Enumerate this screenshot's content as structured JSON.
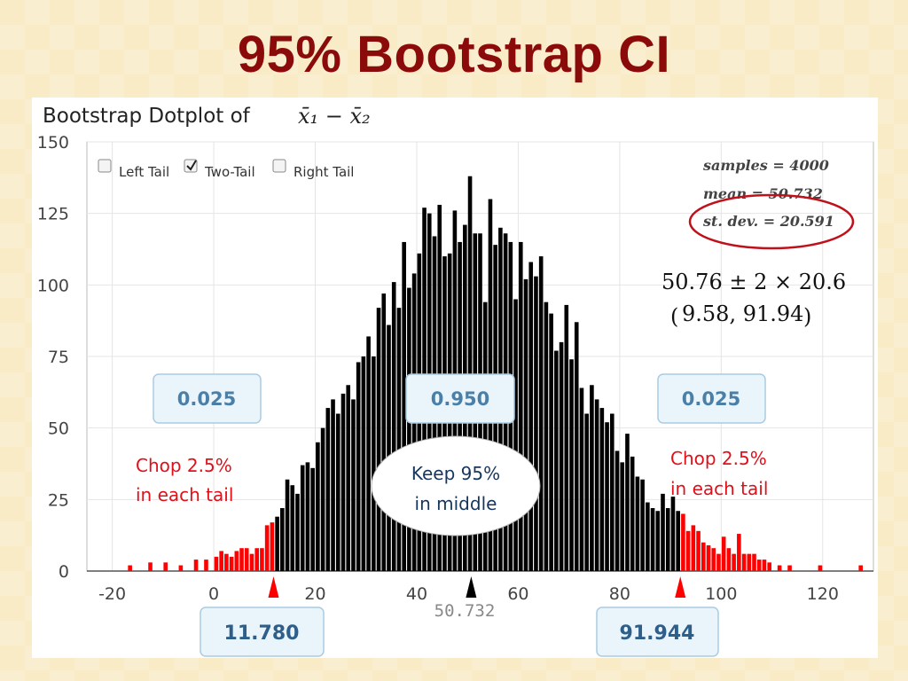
{
  "slide": {
    "title": "95% Bootstrap CI"
  },
  "controls": {
    "left_tail": {
      "label": "Left Tail",
      "checked": false
    },
    "two_tail": {
      "label": "Two-Tail",
      "checked": true
    },
    "right_tail": {
      "label": "Right Tail",
      "checked": false
    }
  },
  "stats": {
    "samples": "samples = 4000",
    "mean": "mean = 50.732",
    "stdev": "st. dev. = 20.591"
  },
  "formula": {
    "line1": "50.76 ± 2 × 20.6",
    "line2_open": "(",
    "line2_inner": "9.58, 91.94",
    "line2_close": ")"
  },
  "proportions": {
    "left": "0.025",
    "middle": "0.950",
    "right": "0.025"
  },
  "bounds": {
    "lower": "11.780",
    "upper": "91.944",
    "mean_marker": "50.732"
  },
  "notes": {
    "left": [
      "Chop 2.5%",
      "in each tail"
    ],
    "middle": [
      "Keep 95%",
      "in middle"
    ],
    "right": [
      "Chop 2.5%",
      "in each tail"
    ]
  },
  "colors": {
    "title": "#8b0a0a",
    "tail_bar": "#ff0000",
    "body_bar": "#000000",
    "stdev_circle": "#c0101a",
    "note_red": "#e0101a",
    "note_blue": "#17365d"
  },
  "chart_data": {
    "type": "bar",
    "title_text": "Bootstrap Dotplot of",
    "title_math": "x̄₁ − x̄₂",
    "xlim": [
      -25,
      130
    ],
    "ylim": [
      0,
      150
    ],
    "x_ticks": [
      -20,
      0,
      20,
      40,
      60,
      80,
      100,
      120
    ],
    "y_ticks": [
      0,
      25,
      50,
      75,
      100,
      125,
      150
    ],
    "grid": true,
    "ci_lower": 11.78,
    "ci_upper": 91.944,
    "mean": 50.732,
    "bars": [
      {
        "x": -16.5,
        "y": 2
      },
      {
        "x": -12.5,
        "y": 3
      },
      {
        "x": -9.5,
        "y": 3
      },
      {
        "x": -6.5,
        "y": 2
      },
      {
        "x": -3.5,
        "y": 4
      },
      {
        "x": -1.5,
        "y": 4
      },
      {
        "x": 0.5,
        "y": 5
      },
      {
        "x": 1.5,
        "y": 7
      },
      {
        "x": 2.5,
        "y": 6
      },
      {
        "x": 3.5,
        "y": 5
      },
      {
        "x": 4.5,
        "y": 7
      },
      {
        "x": 5.5,
        "y": 8
      },
      {
        "x": 6.5,
        "y": 8
      },
      {
        "x": 7.5,
        "y": 6
      },
      {
        "x": 8.5,
        "y": 8
      },
      {
        "x": 9.5,
        "y": 8
      },
      {
        "x": 10.5,
        "y": 16
      },
      {
        "x": 11.5,
        "y": 17
      },
      {
        "x": 12.5,
        "y": 19
      },
      {
        "x": 13.5,
        "y": 22
      },
      {
        "x": 14.5,
        "y": 32
      },
      {
        "x": 15.5,
        "y": 30
      },
      {
        "x": 16.5,
        "y": 27
      },
      {
        "x": 17.5,
        "y": 37
      },
      {
        "x": 18.5,
        "y": 38
      },
      {
        "x": 19.5,
        "y": 36
      },
      {
        "x": 20.5,
        "y": 45
      },
      {
        "x": 21.5,
        "y": 50
      },
      {
        "x": 22.5,
        "y": 57
      },
      {
        "x": 23.5,
        "y": 60
      },
      {
        "x": 24.5,
        "y": 55
      },
      {
        "x": 25.5,
        "y": 62
      },
      {
        "x": 26.5,
        "y": 65
      },
      {
        "x": 27.5,
        "y": 60
      },
      {
        "x": 28.5,
        "y": 73
      },
      {
        "x": 29.5,
        "y": 75
      },
      {
        "x": 30.5,
        "y": 82
      },
      {
        "x": 31.5,
        "y": 75
      },
      {
        "x": 32.5,
        "y": 92
      },
      {
        "x": 33.5,
        "y": 97
      },
      {
        "x": 34.5,
        "y": 86
      },
      {
        "x": 35.5,
        "y": 101
      },
      {
        "x": 36.5,
        "y": 92
      },
      {
        "x": 37.5,
        "y": 115
      },
      {
        "x": 38.5,
        "y": 99
      },
      {
        "x": 39.5,
        "y": 104
      },
      {
        "x": 40.5,
        "y": 111
      },
      {
        "x": 41.5,
        "y": 127
      },
      {
        "x": 42.5,
        "y": 125
      },
      {
        "x": 43.5,
        "y": 117
      },
      {
        "x": 44.5,
        "y": 128
      },
      {
        "x": 45.5,
        "y": 110
      },
      {
        "x": 46.5,
        "y": 111
      },
      {
        "x": 47.5,
        "y": 126
      },
      {
        "x": 48.5,
        "y": 115
      },
      {
        "x": 49.5,
        "y": 121
      },
      {
        "x": 50.5,
        "y": 138
      },
      {
        "x": 51.5,
        "y": 118
      },
      {
        "x": 52.5,
        "y": 118
      },
      {
        "x": 53.5,
        "y": 94
      },
      {
        "x": 54.5,
        "y": 130
      },
      {
        "x": 55.5,
        "y": 114
      },
      {
        "x": 56.5,
        "y": 120
      },
      {
        "x": 57.5,
        "y": 118
      },
      {
        "x": 58.5,
        "y": 115
      },
      {
        "x": 59.5,
        "y": 95
      },
      {
        "x": 60.5,
        "y": 115
      },
      {
        "x": 61.5,
        "y": 102
      },
      {
        "x": 62.5,
        "y": 108
      },
      {
        "x": 63.5,
        "y": 103
      },
      {
        "x": 64.5,
        "y": 110
      },
      {
        "x": 65.5,
        "y": 94
      },
      {
        "x": 66.5,
        "y": 90
      },
      {
        "x": 67.5,
        "y": 77
      },
      {
        "x": 68.5,
        "y": 80
      },
      {
        "x": 69.5,
        "y": 93
      },
      {
        "x": 70.5,
        "y": 74
      },
      {
        "x": 71.5,
        "y": 87
      },
      {
        "x": 72.5,
        "y": 64
      },
      {
        "x": 73.5,
        "y": 55
      },
      {
        "x": 74.5,
        "y": 65
      },
      {
        "x": 75.5,
        "y": 60
      },
      {
        "x": 76.5,
        "y": 57
      },
      {
        "x": 77.5,
        "y": 52
      },
      {
        "x": 78.5,
        "y": 55
      },
      {
        "x": 79.5,
        "y": 42
      },
      {
        "x": 80.5,
        "y": 38
      },
      {
        "x": 81.5,
        "y": 48
      },
      {
        "x": 82.5,
        "y": 40
      },
      {
        "x": 83.5,
        "y": 33
      },
      {
        "x": 84.5,
        "y": 32
      },
      {
        "x": 85.5,
        "y": 24
      },
      {
        "x": 86.5,
        "y": 22
      },
      {
        "x": 87.5,
        "y": 21
      },
      {
        "x": 88.5,
        "y": 27
      },
      {
        "x": 89.5,
        "y": 22
      },
      {
        "x": 90.5,
        "y": 26
      },
      {
        "x": 91.5,
        "y": 21
      },
      {
        "x": 92.5,
        "y": 20
      },
      {
        "x": 93.5,
        "y": 14
      },
      {
        "x": 94.5,
        "y": 16
      },
      {
        "x": 95.5,
        "y": 14
      },
      {
        "x": 96.5,
        "y": 10
      },
      {
        "x": 97.5,
        "y": 9
      },
      {
        "x": 98.5,
        "y": 8
      },
      {
        "x": 99.5,
        "y": 6
      },
      {
        "x": 100.5,
        "y": 12
      },
      {
        "x": 101.5,
        "y": 8
      },
      {
        "x": 102.5,
        "y": 6
      },
      {
        "x": 103.5,
        "y": 13
      },
      {
        "x": 104.5,
        "y": 6
      },
      {
        "x": 105.5,
        "y": 6
      },
      {
        "x": 106.5,
        "y": 6
      },
      {
        "x": 107.5,
        "y": 4
      },
      {
        "x": 108.5,
        "y": 4
      },
      {
        "x": 109.5,
        "y": 3
      },
      {
        "x": 111.5,
        "y": 2
      },
      {
        "x": 113.5,
        "y": 2
      },
      {
        "x": 119.5,
        "y": 2
      },
      {
        "x": 127.5,
        "y": 2
      }
    ]
  }
}
